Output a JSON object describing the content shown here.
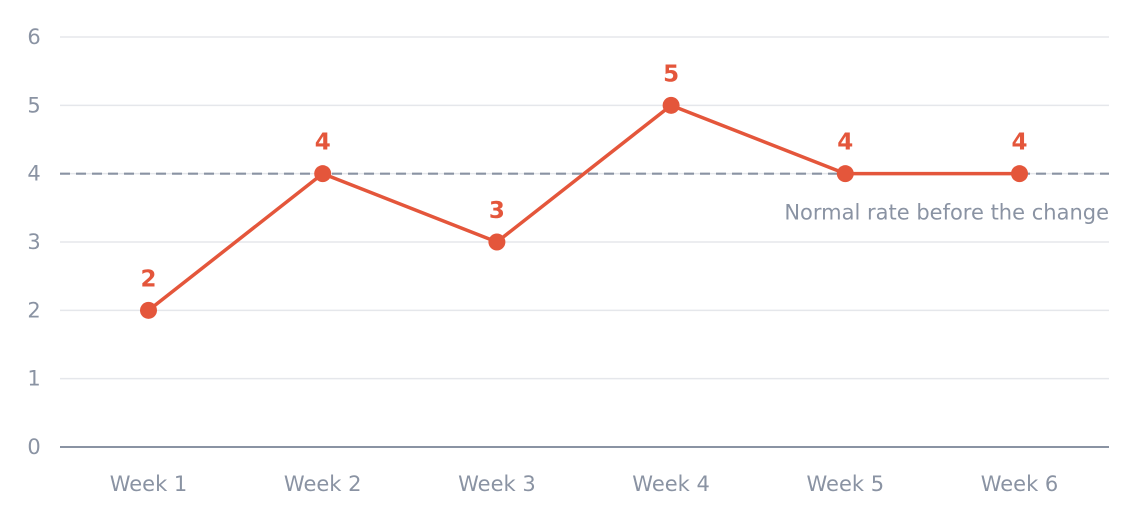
{
  "chart_data": {
    "type": "line",
    "categories": [
      "Week 1",
      "Week 2",
      "Week 3",
      "Week 4",
      "Week 5",
      "Week 6"
    ],
    "values": [
      2,
      4,
      3,
      5,
      4,
      4
    ],
    "ylim": [
      0,
      6
    ],
    "yticks": [
      0,
      1,
      2,
      3,
      4,
      5,
      6
    ],
    "grid": true,
    "reference_line": {
      "value": 4,
      "label": "Normal rate before the change",
      "color": "#8a93a3"
    },
    "series_color": "#e4563b",
    "title": "",
    "xlabel": "",
    "ylabel": ""
  }
}
